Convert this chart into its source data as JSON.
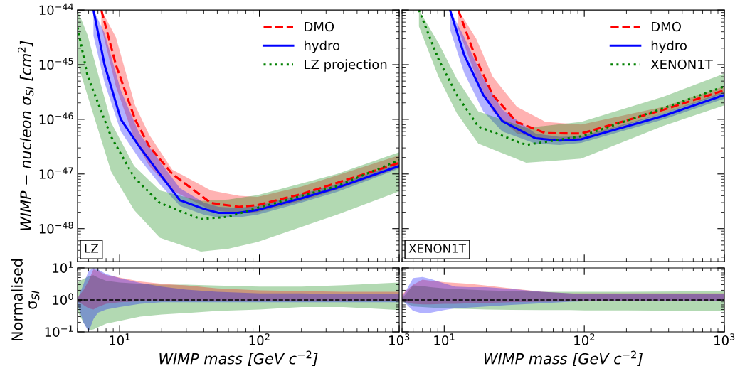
{
  "chart_data": [
    {
      "type": "line",
      "log": "xy",
      "ylabel": "WIMP − nucleon σ$_{SI}$ [cm$^{2}$]",
      "xlim": [
        5,
        1000
      ],
      "ylim": [
        2.5e-49,
        1e-44
      ],
      "xticks": [
        10,
        100,
        1000
      ],
      "yticks": [
        {
          "value": 1e-48,
          "label": "10$^{−48}$"
        },
        {
          "value": 1e-47,
          "label": "10$^{−47}$"
        },
        {
          "value": 1e-46,
          "label": "10$^{−46}$"
        },
        {
          "value": 1e-45,
          "label": "10$^{−45}$"
        },
        {
          "value": 1e-44,
          "label": "10$^{−44}$"
        }
      ],
      "tick_labels": "y",
      "legend": "top right",
      "annotations": [
        "LZ"
      ],
      "series": [
        {
          "name": "DMO",
          "color": "#ff0000",
          "line_style": "dashed",
          "x": [
            7.4,
            9.4,
            12.9,
            16.3,
            23.8,
            45,
            71.6,
            97,
            200,
            360,
            1000
          ],
          "values": [
            1e-44,
            1e-45,
            1e-46,
            3.2e-47,
            1e-47,
            2.95e-48,
            2.5e-48,
            2.7e-48,
            4.3e-48,
            6.9e-48,
            1.6e-47
          ],
          "upper": [
            1e-44,
            3.2e-45,
            1.8e-46,
            5.2e-47,
            1.2e-47,
            5e-48,
            4e-48,
            3.8e-48,
            5.9e-48,
            9.4e-48,
            2.2e-47
          ],
          "lower": [
            5e-45,
            4e-46,
            4e-47,
            1.4e-47,
            5e-48,
            2.2e-48,
            1.9e-48,
            2e-48,
            3.2e-48,
            5.2e-48,
            1.3e-47
          ]
        },
        {
          "name": "hydro",
          "color": "#0000ff",
          "line_style": "solid",
          "x": [
            6.5,
            7.8,
            10.2,
            13.8,
            19.4,
            27,
            40,
            51,
            70,
            97,
            200,
            360,
            1000
          ],
          "values": [
            1e-44,
            1e-45,
            1e-46,
            3.2e-47,
            1e-47,
            3.3e-48,
            2.3e-48,
            1.95e-48,
            1.95e-48,
            2.2e-48,
            3.6e-48,
            5.6e-48,
            1.4e-47
          ],
          "upper": [
            1e-44,
            3.8e-45,
            3.4e-46,
            5.6e-47,
            1.7e-47,
            5.5e-48,
            3e-48,
            2.5e-48,
            2.4e-48,
            2.6e-48,
            4.3e-48,
            6.6e-48,
            1.55e-47
          ],
          "lower": [
            3.4e-45,
            4.7e-46,
            6e-47,
            1.9e-47,
            6.5e-48,
            2.6e-48,
            1.8e-48,
            1.6e-48,
            1.6e-48,
            1.8e-48,
            3e-48,
            4.7e-48,
            1.25e-47
          ]
        },
        {
          "name": "LZ projection",
          "color": "#008000",
          "line_style": "dotted",
          "x": [
            5,
            5.9,
            8.7,
            12.7,
            19.4,
            38.2,
            60,
            97,
            360,
            1000
          ],
          "values": [
            4.8e-45,
            6.2e-46,
            4.8e-47,
            8.7e-48,
            2.95e-48,
            1.5e-48,
            1.65e-48,
            2.4e-48,
            6e-48,
            1.8e-47
          ],
          "upper": [
            1e-44,
            3.5e-45,
            8.7e-47,
            1.4e-47,
            5e-48,
            3.2e-48,
            3.4e-48,
            4.1e-48,
            1e-47,
            2.5e-47
          ],
          "lower": [
            1.07e-45,
            2.7e-46,
            1.1e-47,
            2.2e-48,
            6.8e-49,
            3.8e-49,
            4.3e-49,
            5.7e-49,
            1.8e-48,
            4.8e-48
          ]
        }
      ]
    },
    {
      "type": "line",
      "log": "xy",
      "xlim": [
        5,
        1000
      ],
      "ylim": [
        2.5e-49,
        1e-44
      ],
      "xticks": [
        10,
        100,
        1000
      ],
      "yticks": [
        1e-48,
        1e-47,
        1e-46,
        1e-45,
        1e-44
      ],
      "tick_labels": false,
      "legend": "top right",
      "annotations": [
        "XENON1T"
      ],
      "series": [
        {
          "name": "DMO",
          "color": "#ff0000",
          "line_style": "dashed",
          "x": [
            12.6,
            16.9,
            22.2,
            33,
            52.8,
            95,
            368,
            1000
          ],
          "values": [
            1e-44,
            1.26e-45,
            2.8e-46,
            8.9e-47,
            5.6e-47,
            5.5e-47,
            1.5e-46,
            3.4e-46
          ],
          "upper": [
            1e-44,
            3e-45,
            6e-46,
            1.7e-46,
            9e-47,
            8e-47,
            1.7e-46,
            4e-46
          ],
          "lower": [
            4.5e-45,
            6e-46,
            1.4e-46,
            5.5e-47,
            4.3e-47,
            4.4e-47,
            1.3e-46,
            3e-46
          ]
        },
        {
          "name": "hydro",
          "color": "#0000ff",
          "line_style": "solid",
          "x": [
            11,
            13.9,
            19,
            26,
            44.8,
            66.6,
            95,
            368,
            1000
          ],
          "values": [
            1e-44,
            1.5e-45,
            2.8e-46,
            9.3e-47,
            4.5e-47,
            4.1e-47,
            4.3e-47,
            1.16e-46,
            2.8e-46
          ],
          "upper": [
            1e-44,
            3.2e-45,
            5.6e-46,
            1.5e-46,
            5.5e-47,
            4.8e-47,
            4.9e-47,
            1.3e-46,
            3.2e-46
          ],
          "lower": [
            4.4e-45,
            7e-46,
            1.4e-46,
            6e-47,
            3.6e-47,
            3.4e-47,
            3.7e-47,
            1e-46,
            2.4e-46
          ]
        },
        {
          "name": "XENON1T",
          "color": "#008000",
          "line_style": "dotted",
          "x": [
            6.6,
            9.1,
            12.3,
            17.5,
            38.5,
            95,
            368,
            1000
          ],
          "values": [
            1e-44,
            1.26e-45,
            2.8e-46,
            7.4e-47,
            3.4e-47,
            4.9e-47,
            1.6e-46,
            4e-46
          ],
          "upper": [
            1e-44,
            2.5e-45,
            5.5e-46,
            1.4e-46,
            7e-47,
            9e-47,
            2.6e-46,
            6.9e-46
          ],
          "lower": [
            5e-45,
            6e-46,
            1.3e-46,
            3.6e-47,
            1.6e-47,
            1.9e-47,
            7.6e-47,
            1.8e-46
          ]
        }
      ]
    },
    {
      "type": "line",
      "log": "xy",
      "xlabel": "WIMP mass [GeV c$^{−2}$]",
      "ylabel": "Normalised\nσ$_{SI}$",
      "xlim": [
        5,
        1000
      ],
      "ylim": [
        0.1,
        10
      ],
      "xticks": [
        {
          "value": 10,
          "label": "10$^{1}$"
        },
        {
          "value": 100,
          "label": "10$^{2}$"
        },
        {
          "value": 1000,
          "label": "10$^{3}$"
        }
      ],
      "yticks": [
        {
          "value": 0.1,
          "label": "10$^{−1}$"
        },
        {
          "value": 1,
          "label": "10$^{0}$"
        },
        {
          "value": 10,
          "label": "10$^{1}$"
        }
      ],
      "ref_lines": [
        {
          "axis": "y",
          "value": 1,
          "color": "#000000",
          "line_style": "dashed"
        }
      ],
      "x": [
        5,
        5.5,
        6,
        6.5,
        7,
        8,
        10,
        14,
        20,
        30,
        50,
        100,
        200,
        400,
        1000
      ],
      "series": [
        {
          "color": "#008000",
          "values": [
            null,
            null,
            null,
            null,
            null,
            null,
            null,
            null,
            null,
            null,
            null,
            null,
            null,
            null,
            null
          ],
          "upper": [
            3.5,
            4.5,
            5.5,
            5.9,
            5.0,
            4.0,
            3.5,
            3.2,
            3.0,
            3.0,
            2.8,
            2.6,
            2.6,
            2.9,
            3.5
          ],
          "lower": [
            0.43,
            0.2,
            0.11,
            0.12,
            0.14,
            0.18,
            0.22,
            0.3,
            0.35,
            0.39,
            0.45,
            0.5,
            0.6,
            0.6,
            0.48
          ]
        },
        {
          "color": "#ff0000",
          "values": [
            null,
            null,
            null,
            null,
            null,
            null,
            null,
            null,
            null,
            null,
            null,
            null,
            null,
            null,
            null
          ],
          "upper": [
            1.2,
            2,
            4,
            9,
            8,
            6,
            5,
            3.8,
            3.2,
            2.85,
            2.3,
            2.0,
            1.9,
            1.8,
            1.8
          ],
          "lower": [
            0.9,
            0.7,
            0.55,
            0.5,
            0.6,
            0.75,
            0.85,
            0.9,
            0.9,
            0.9,
            0.9,
            0.9,
            0.9,
            0.9,
            0.9
          ]
        },
        {
          "color": "#0000ff",
          "values": [
            null,
            null,
            null,
            null,
            null,
            null,
            null,
            null,
            null,
            null,
            null,
            null,
            null,
            null,
            null
          ],
          "upper": [
            1.05,
            3,
            8,
            10,
            9,
            6.5,
            4.8,
            3.4,
            2.6,
            2.1,
            1.8,
            1.6,
            1.6,
            1.5,
            1.5
          ],
          "lower": [
            0.73,
            0.2,
            0.1,
            0.25,
            0.4,
            0.5,
            0.6,
            0.75,
            0.85,
            0.85,
            0.85,
            0.85,
            0.85,
            0.85,
            0.85
          ]
        }
      ]
    },
    {
      "type": "line",
      "log": "xy",
      "xlabel": "WIMP mass [GeV c$^{−2}$]",
      "xlim": [
        5,
        1000
      ],
      "ylim": [
        0.1,
        10
      ],
      "xticks": [
        {
          "value": 10,
          "label": "10$^{1}$"
        },
        {
          "value": 100,
          "label": "10$^{2}$"
        },
        {
          "value": 1000,
          "label": "10$^{3}$"
        }
      ],
      "yticks": [
        0.1,
        1,
        10
      ],
      "tick_labels": "x",
      "ref_lines": [
        {
          "axis": "y",
          "value": 1,
          "color": "#000000",
          "line_style": "dashed"
        }
      ],
      "x": [
        5,
        6,
        7,
        8,
        10,
        12,
        15,
        20,
        30,
        50,
        80,
        100,
        200,
        500,
        1000
      ],
      "series": [
        {
          "color": "#008000",
          "values": [
            null,
            null,
            null,
            null,
            null,
            null,
            null,
            null,
            null,
            null,
            null,
            null,
            null,
            null,
            null
          ],
          "upper": [
            1.1,
            2.85,
            2.7,
            2.5,
            2.3,
            2.2,
            2.1,
            2.0,
            1.9,
            1.8,
            1.8,
            1.8,
            1.8,
            1.85,
            1.9
          ],
          "lower": [
            0.9,
            0.62,
            0.6,
            0.58,
            0.55,
            0.53,
            0.52,
            0.5,
            0.49,
            0.48,
            0.48,
            0.47,
            0.47,
            0.46,
            0.45
          ]
        },
        {
          "color": "#ff0000",
          "values": [
            null,
            null,
            null,
            null,
            null,
            null,
            null,
            null,
            null,
            null,
            null,
            null,
            null,
            null,
            null
          ],
          "upper": [
            1.5,
            3.0,
            4.3,
            4.0,
            3.6,
            3.4,
            3.2,
            2.8,
            2.3,
            1.8,
            1.6,
            1.6,
            1.6,
            1.6,
            1.6
          ],
          "lower": [
            0.9,
            0.75,
            0.73,
            0.73,
            0.75,
            0.75,
            0.78,
            0.8,
            0.85,
            0.88,
            0.9,
            0.9,
            0.9,
            0.9,
            0.9
          ]
        },
        {
          "color": "#0000ff",
          "values": [
            null,
            null,
            null,
            null,
            null,
            null,
            null,
            null,
            null,
            null,
            null,
            null,
            null,
            null,
            null
          ],
          "upper": [
            1.2,
            4.8,
            5.2,
            4.5,
            3.3,
            2.6,
            2.5,
            2.5,
            2.2,
            1.8,
            1.6,
            1.5,
            1.5,
            1.5,
            1.5
          ],
          "lower": [
            1.0,
            0.45,
            0.38,
            0.4,
            0.48,
            0.55,
            0.58,
            0.62,
            0.7,
            0.78,
            0.88,
            0.9,
            0.9,
            0.9,
            0.9
          ]
        }
      ]
    }
  ]
}
